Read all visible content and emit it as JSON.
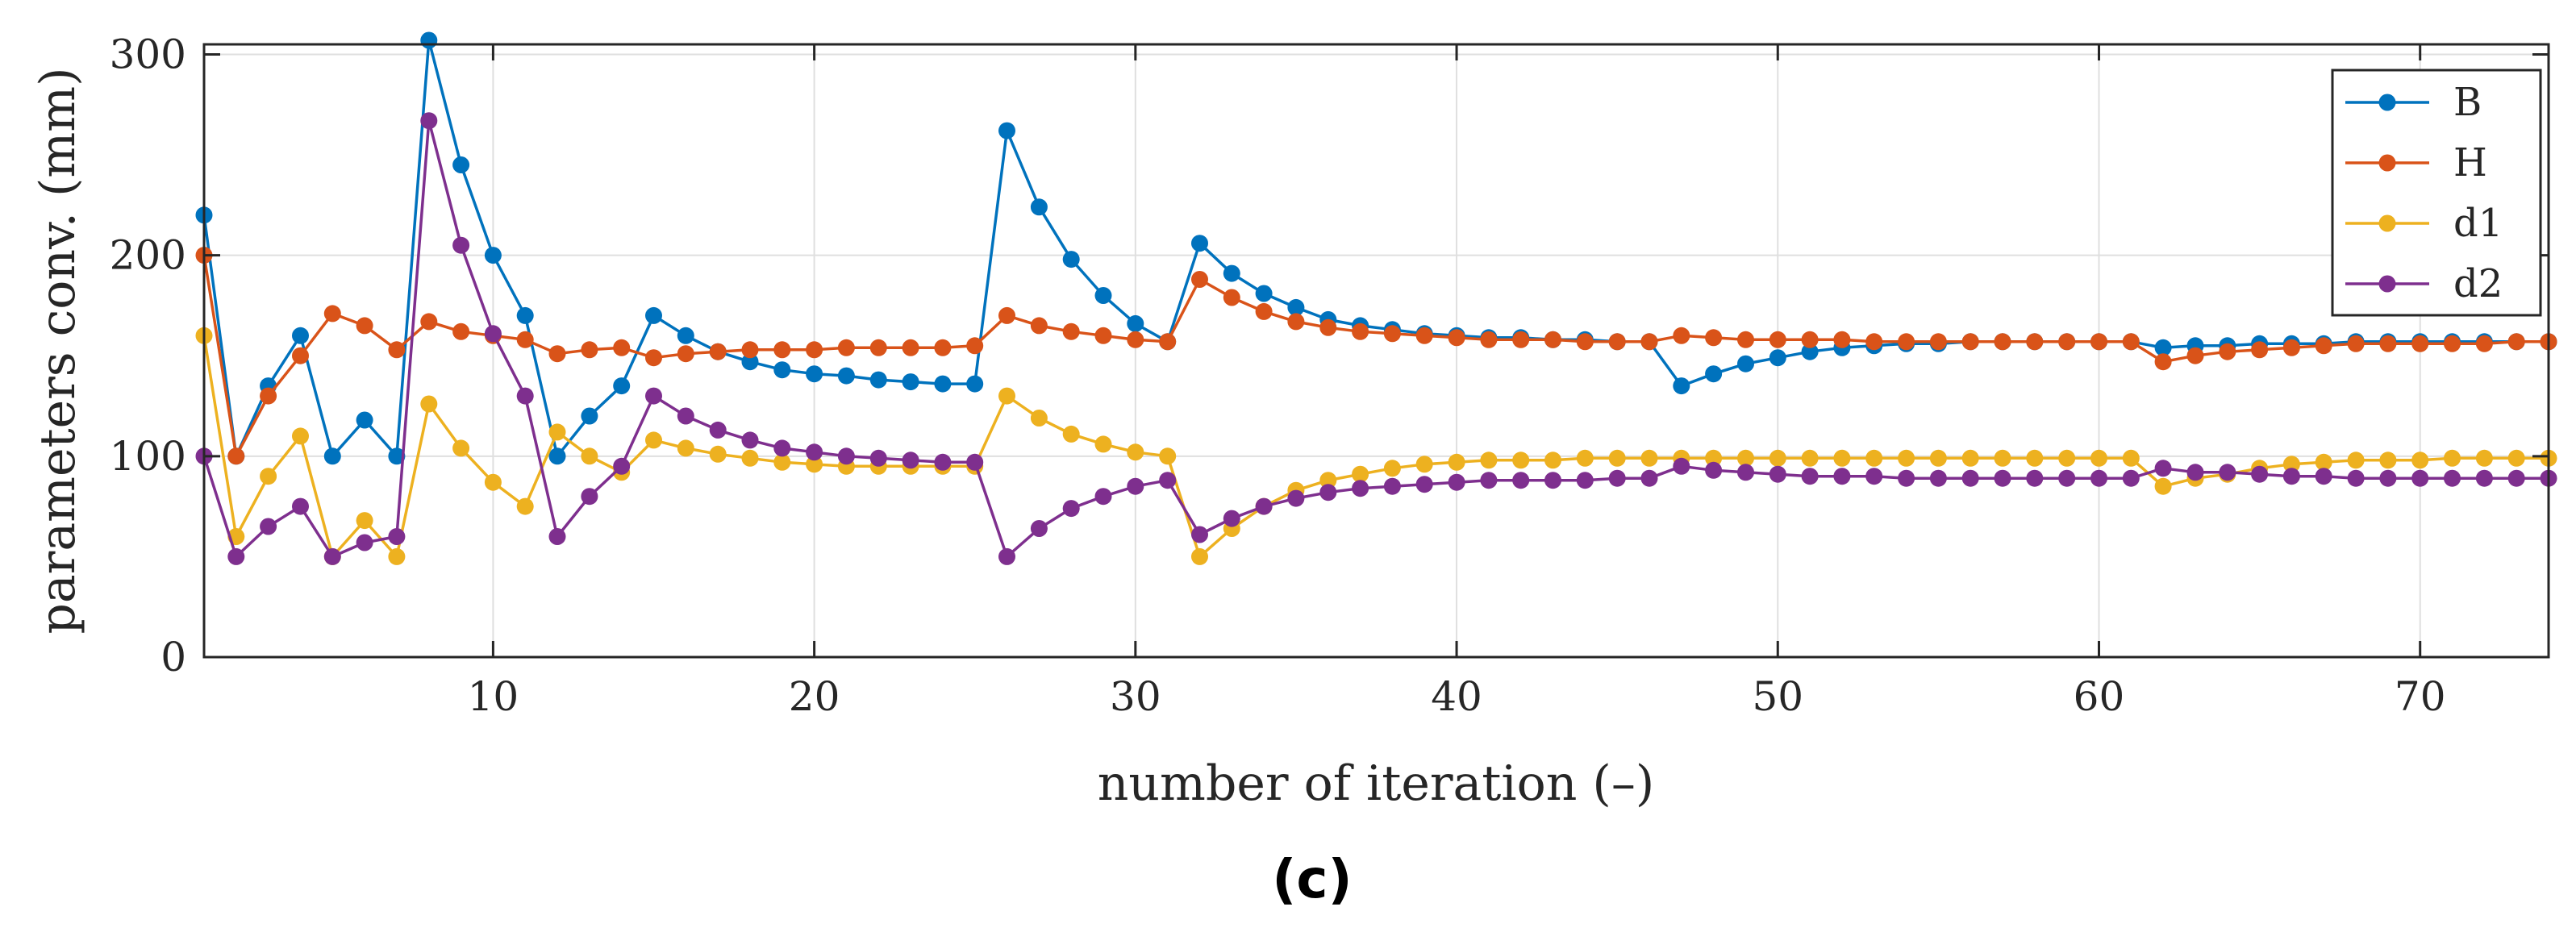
{
  "caption": "(c)",
  "chart_data": {
    "type": "line",
    "title": "",
    "xlabel": "number of iteration (–)",
    "ylabel": "parameters conv. (mm)",
    "xlim": [
      1,
      74
    ],
    "ylim": [
      0,
      305
    ],
    "xticks": [
      10,
      20,
      30,
      40,
      50,
      60,
      70
    ],
    "yticks": [
      0,
      100,
      200,
      300
    ],
    "grid": true,
    "legend_position": "top-right",
    "x": [
      1,
      2,
      3,
      4,
      5,
      6,
      7,
      8,
      9,
      10,
      11,
      12,
      13,
      14,
      15,
      16,
      17,
      18,
      19,
      20,
      21,
      22,
      23,
      24,
      25,
      26,
      27,
      28,
      29,
      30,
      31,
      32,
      33,
      34,
      35,
      36,
      37,
      38,
      39,
      40,
      41,
      42,
      43,
      44,
      45,
      46,
      47,
      48,
      49,
      50,
      51,
      52,
      53,
      54,
      55,
      56,
      57,
      58,
      59,
      60,
      61,
      62,
      63,
      64,
      65,
      66,
      67,
      68,
      69,
      70,
      71,
      72,
      73,
      74
    ],
    "series": [
      {
        "name": "B",
        "color": "#0072BD",
        "values": [
          220,
          100,
          135,
          160,
          100,
          118,
          100,
          307,
          245,
          200,
          170,
          100,
          120,
          135,
          170,
          160,
          152,
          147,
          143,
          141,
          140,
          138,
          137,
          136,
          136,
          262,
          224,
          198,
          180,
          166,
          157,
          206,
          191,
          181,
          174,
          168,
          165,
          163,
          161,
          160,
          159,
          159,
          158,
          158,
          157,
          157,
          135,
          141,
          146,
          149,
          152,
          154,
          155,
          156,
          156,
          157,
          157,
          157,
          157,
          157,
          157,
          154,
          155,
          155,
          156,
          156,
          156,
          157,
          157,
          157,
          157,
          157,
          157,
          157
        ]
      },
      {
        "name": "H",
        "color": "#D95319",
        "values": [
          200,
          100,
          130,
          150,
          171,
          165,
          153,
          167,
          162,
          160,
          158,
          151,
          153,
          154,
          149,
          151,
          152,
          153,
          153,
          153,
          154,
          154,
          154,
          154,
          155,
          170,
          165,
          162,
          160,
          158,
          157,
          188,
          179,
          172,
          167,
          164,
          162,
          161,
          160,
          159,
          158,
          158,
          158,
          157,
          157,
          157,
          160,
          159,
          158,
          158,
          158,
          158,
          157,
          157,
          157,
          157,
          157,
          157,
          157,
          157,
          157,
          147,
          150,
          152,
          153,
          154,
          155,
          156,
          156,
          156,
          156,
          156,
          157,
          157
        ]
      },
      {
        "name": "d1",
        "color": "#EDB120",
        "values": [
          160,
          60,
          90,
          110,
          50,
          68,
          50,
          126,
          104,
          87,
          75,
          112,
          100,
          92,
          108,
          104,
          101,
          99,
          97,
          96,
          95,
          95,
          95,
          95,
          95,
          130,
          119,
          111,
          106,
          102,
          100,
          50,
          64,
          75,
          83,
          88,
          91,
          94,
          96,
          97,
          98,
          98,
          98,
          99,
          99,
          99,
          99,
          99,
          99,
          99,
          99,
          99,
          99,
          99,
          99,
          99,
          99,
          99,
          99,
          99,
          99,
          85,
          89,
          91,
          94,
          96,
          97,
          98,
          98,
          98,
          99,
          99,
          99,
          99
        ]
      },
      {
        "name": "d2",
        "color": "#7E2F8E",
        "values": [
          100,
          50,
          65,
          75,
          50,
          57,
          60,
          267,
          205,
          161,
          130,
          60,
          80,
          95,
          130,
          120,
          113,
          108,
          104,
          102,
          100,
          99,
          98,
          97,
          97,
          50,
          64,
          74,
          80,
          85,
          88,
          61,
          69,
          75,
          79,
          82,
          84,
          85,
          86,
          87,
          88,
          88,
          88,
          88,
          89,
          89,
          95,
          93,
          92,
          91,
          90,
          90,
          90,
          89,
          89,
          89,
          89,
          89,
          89,
          89,
          89,
          94,
          92,
          92,
          91,
          90,
          90,
          89,
          89,
          89,
          89,
          89,
          89,
          89
        ]
      }
    ]
  }
}
